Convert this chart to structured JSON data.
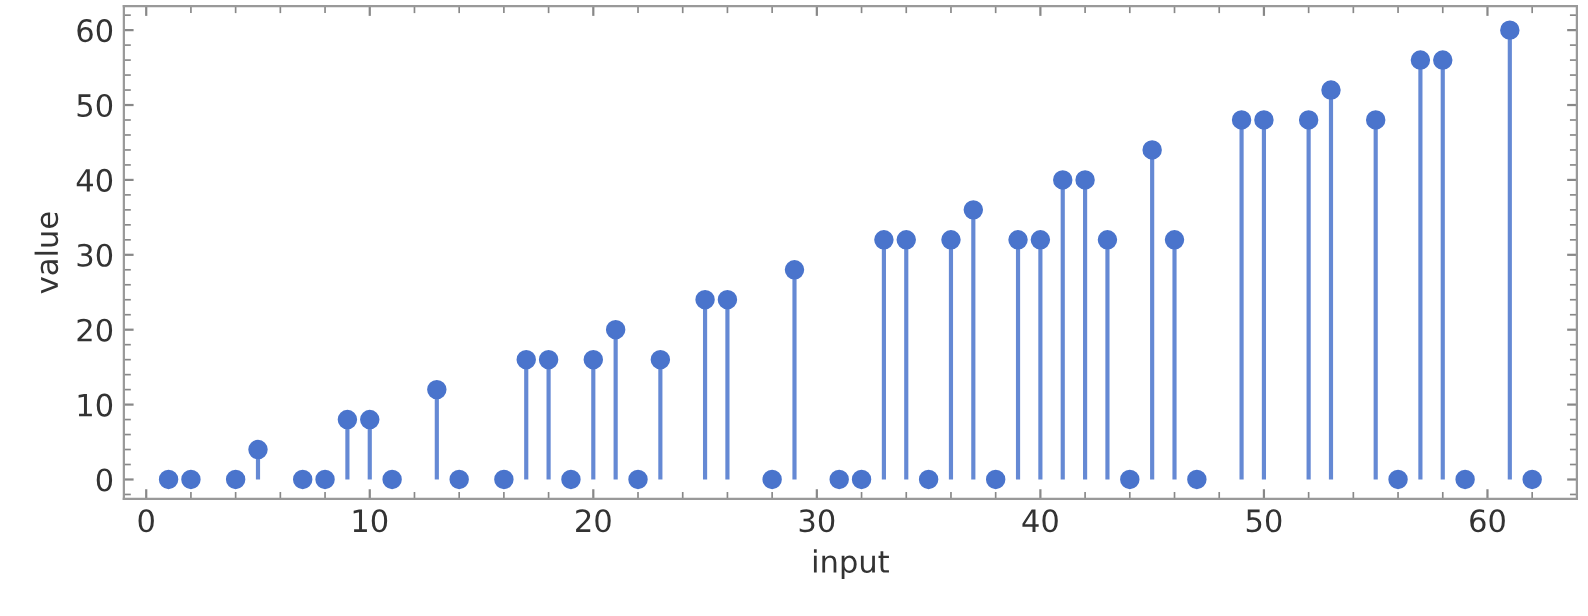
{
  "chart_data": {
    "type": "lollipop",
    "xlabel": "input",
    "ylabel": "value",
    "x": [
      1,
      2,
      3,
      4,
      5,
      6,
      7,
      8,
      9,
      10,
      11,
      12,
      13,
      14,
      15,
      16,
      17,
      18,
      19,
      20,
      21,
      22,
      23,
      24,
      25,
      26,
      27,
      28,
      29,
      30,
      31,
      32,
      33,
      34,
      35,
      36,
      37,
      38,
      39,
      40,
      41,
      42,
      43,
      44,
      45,
      46,
      47,
      48,
      49,
      50,
      51,
      52,
      53,
      54,
      55,
      56,
      57,
      58,
      59,
      60,
      61,
      62
    ],
    "values": [
      0,
      0,
      null,
      0,
      4,
      null,
      0,
      0,
      8,
      8,
      0,
      null,
      12,
      0,
      null,
      0,
      16,
      16,
      0,
      16,
      20,
      0,
      16,
      null,
      24,
      24,
      null,
      0,
      28,
      null,
      0,
      0,
      32,
      32,
      0,
      32,
      36,
      0,
      32,
      32,
      40,
      40,
      32,
      0,
      44,
      32,
      0,
      null,
      48,
      48,
      null,
      48,
      52,
      null,
      48,
      0,
      56,
      56,
      0,
      null,
      60,
      0
    ],
    "color": "#4a74cc",
    "marker": "circle",
    "xlim": [
      -1,
      64
    ],
    "ylim": [
      -2.6,
      63.2
    ],
    "xticks": [
      0,
      10,
      20,
      30,
      40,
      50,
      60
    ],
    "yticks": [
      0,
      10,
      20,
      30,
      40,
      50,
      60
    ],
    "grid": false
  }
}
